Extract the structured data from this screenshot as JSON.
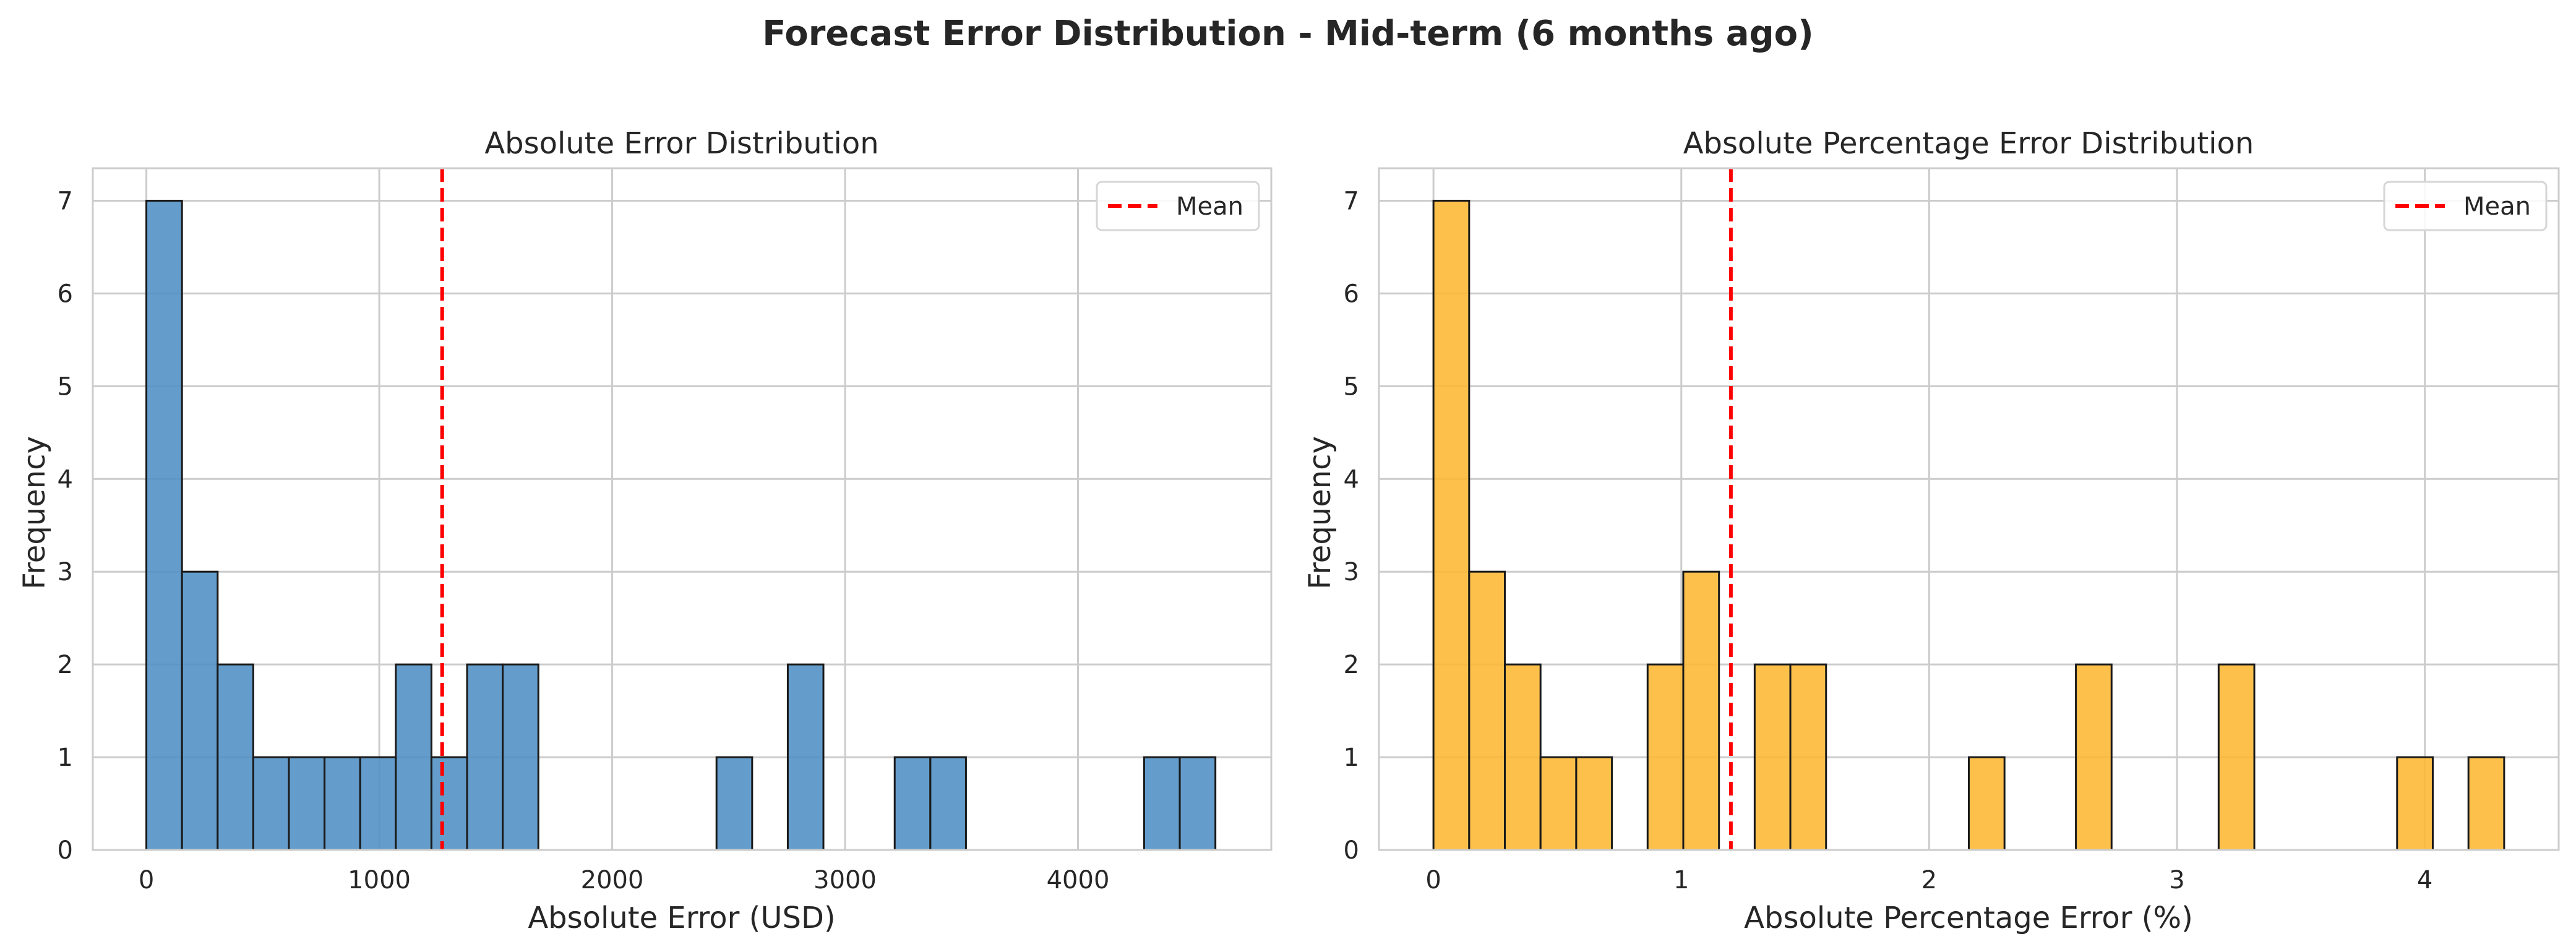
{
  "figure": {
    "suptitle": "Forecast Error Distribution - Mid-term (6 months ago)"
  },
  "colors": {
    "mean_line": "#ff0000",
    "grid": "#cccccc",
    "spine": "#cccccc",
    "edge": "#1a1a1a"
  },
  "chart_data": [
    {
      "type": "bar",
      "title": "Absolute Error Distribution",
      "xlabel": "Absolute Error (USD)",
      "ylabel": "Frequency",
      "xlim": [
        -230,
        4830
      ],
      "ylim": [
        0,
        7.35
      ],
      "xticks": [
        0,
        1000,
        2000,
        3000,
        4000
      ],
      "xtick_labels": [
        "0",
        "1000",
        "2000",
        "3000",
        "4000"
      ],
      "yticks": [
        0,
        1,
        2,
        3,
        4,
        5,
        6,
        7
      ],
      "ytick_labels": [
        "0",
        "1",
        "2",
        "3",
        "4",
        "5",
        "6",
        "7"
      ],
      "grid": true,
      "legend": {
        "placement": "upper right",
        "entries": [
          "Mean"
        ]
      },
      "mean": 1270,
      "bar_color": "#4e8fc5",
      "bin_width": 153,
      "bins": [
        {
          "x0": 0,
          "x1": 153,
          "count": 7
        },
        {
          "x0": 153,
          "x1": 306,
          "count": 3
        },
        {
          "x0": 306,
          "x1": 459,
          "count": 2
        },
        {
          "x0": 459,
          "x1": 612,
          "count": 1
        },
        {
          "x0": 612,
          "x1": 765,
          "count": 1
        },
        {
          "x0": 765,
          "x1": 918,
          "count": 1
        },
        {
          "x0": 918,
          "x1": 1071,
          "count": 1
        },
        {
          "x0": 1071,
          "x1": 1224,
          "count": 2
        },
        {
          "x0": 1224,
          "x1": 1377,
          "count": 1
        },
        {
          "x0": 1377,
          "x1": 1530,
          "count": 2
        },
        {
          "x0": 1530,
          "x1": 1683,
          "count": 2
        },
        {
          "x0": 2448,
          "x1": 2601,
          "count": 1
        },
        {
          "x0": 2754,
          "x1": 2907,
          "count": 2
        },
        {
          "x0": 3213,
          "x1": 3366,
          "count": 1
        },
        {
          "x0": 3366,
          "x1": 3519,
          "count": 1
        },
        {
          "x0": 4284,
          "x1": 4437,
          "count": 1
        },
        {
          "x0": 4437,
          "x1": 4590,
          "count": 1
        }
      ]
    },
    {
      "type": "bar",
      "title": "Absolute Percentage Error Distribution",
      "xlabel": "Absolute Percentage Error (%)",
      "ylabel": "Frequency",
      "xlim": [
        -0.22,
        4.54
      ],
      "ylim": [
        0,
        7.35
      ],
      "xticks": [
        0,
        1,
        2,
        3,
        4
      ],
      "xtick_labels": [
        "0",
        "1",
        "2",
        "3",
        "4"
      ],
      "yticks": [
        0,
        1,
        2,
        3,
        4,
        5,
        6,
        7
      ],
      "ytick_labels": [
        "0",
        "1",
        "2",
        "3",
        "4",
        "5",
        "6",
        "7"
      ],
      "grid": true,
      "legend": {
        "placement": "upper right",
        "entries": [
          "Mean"
        ]
      },
      "mean": 1.2,
      "bar_color": "#fdb732",
      "bin_width": 0.144,
      "bins": [
        {
          "x0": 0.0,
          "x1": 0.144,
          "count": 7
        },
        {
          "x0": 0.144,
          "x1": 0.288,
          "count": 3
        },
        {
          "x0": 0.288,
          "x1": 0.432,
          "count": 2
        },
        {
          "x0": 0.432,
          "x1": 0.576,
          "count": 1
        },
        {
          "x0": 0.576,
          "x1": 0.72,
          "count": 1
        },
        {
          "x0": 0.864,
          "x1": 1.008,
          "count": 2
        },
        {
          "x0": 1.008,
          "x1": 1.152,
          "count": 3
        },
        {
          "x0": 1.296,
          "x1": 1.44,
          "count": 2
        },
        {
          "x0": 1.44,
          "x1": 1.584,
          "count": 2
        },
        {
          "x0": 2.16,
          "x1": 2.304,
          "count": 1
        },
        {
          "x0": 2.592,
          "x1": 2.736,
          "count": 2
        },
        {
          "x0": 3.168,
          "x1": 3.312,
          "count": 2
        },
        {
          "x0": 3.888,
          "x1": 4.032,
          "count": 1
        },
        {
          "x0": 4.176,
          "x1": 4.32,
          "count": 1
        }
      ]
    }
  ]
}
